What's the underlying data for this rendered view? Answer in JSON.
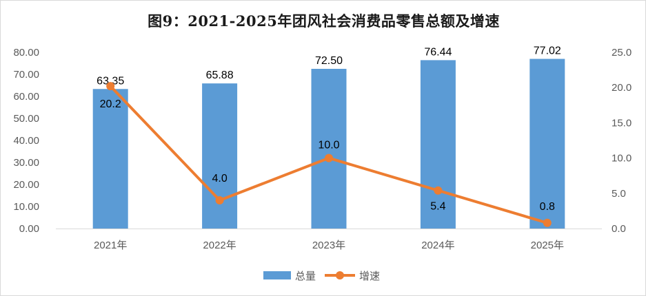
{
  "chart_data": {
    "type": "bar",
    "title": "图9：2021-2025年团风社会消费品零售总额及增速",
    "categories": [
      "2021年",
      "2022年",
      "2023年",
      "2024年",
      "2025年"
    ],
    "series": [
      {
        "name": "总量",
        "type": "bar",
        "axis": "left",
        "color": "#5b9bd5",
        "values": [
          63.35,
          65.88,
          72.5,
          76.44,
          77.02
        ],
        "labels": [
          "63.35",
          "65.88",
          "72.50",
          "76.44",
          "77.02"
        ]
      },
      {
        "name": "增速",
        "type": "line",
        "axis": "right",
        "color": "#ed7d31",
        "values": [
          20.2,
          4.0,
          10.0,
          5.4,
          0.8
        ],
        "labels": [
          "20.2",
          "4.0",
          "10.0",
          "5.4",
          "0.8"
        ]
      }
    ],
    "y_left": {
      "min": 0,
      "max": 80,
      "ticks": [
        "0.00",
        "10.00",
        "20.00",
        "30.00",
        "40.00",
        "50.00",
        "60.00",
        "70.00",
        "80.00"
      ]
    },
    "y_right": {
      "min": 0,
      "max": 25,
      "ticks": [
        "0.0",
        "5.0",
        "10.0",
        "15.0",
        "20.0",
        "25.0"
      ]
    },
    "legend_position": "bottom",
    "grid": false
  }
}
